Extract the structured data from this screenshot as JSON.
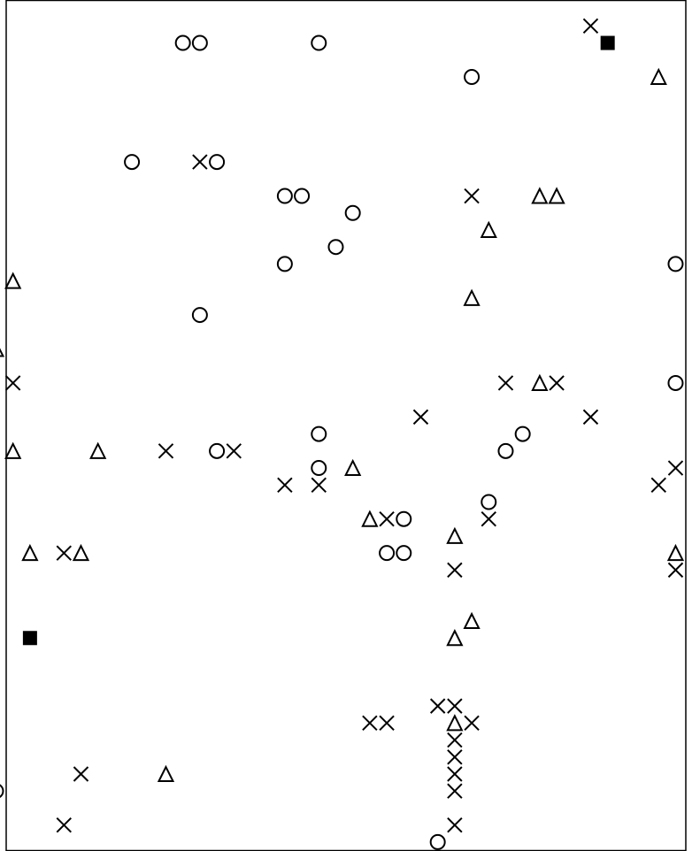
{
  "chart_data": {
    "type": "scatter",
    "title": "",
    "xlabel": "",
    "ylabel": "",
    "xlim": [
      0,
      40
    ],
    "ylim": [
      0,
      50
    ],
    "grid": false,
    "legend": "none",
    "color": "#000000",
    "series": [
      {
        "marker": "circle",
        "points": [
          [
            10.4,
            47.5
          ],
          [
            11.4,
            47.5
          ],
          [
            18.4,
            47.5
          ],
          [
            27.4,
            45.5
          ],
          [
            7.4,
            40.5
          ],
          [
            12.4,
            40.5
          ],
          [
            16.4,
            38.5
          ],
          [
            17.4,
            38.5
          ],
          [
            20.4,
            37.5
          ],
          [
            19.4,
            35.5
          ],
          [
            16.4,
            34.5
          ],
          [
            39.4,
            34.5
          ],
          [
            11.4,
            31.5
          ],
          [
            39.4,
            27.5
          ],
          [
            18.4,
            24.5
          ],
          [
            30.4,
            24.5
          ],
          [
            12.4,
            23.5
          ],
          [
            29.4,
            23.5
          ],
          [
            18.4,
            22.5
          ],
          [
            28.4,
            20.5
          ],
          [
            23.4,
            19.5
          ],
          [
            22.4,
            17.5
          ],
          [
            23.4,
            17.5
          ],
          [
            -0.6,
            3.5
          ],
          [
            25.4,
            0.5
          ]
        ]
      },
      {
        "marker": "cross",
        "points": [
          [
            34.4,
            48.5
          ],
          [
            11.4,
            40.5
          ],
          [
            27.4,
            38.5
          ],
          [
            0.4,
            27.5
          ],
          [
            29.4,
            27.5
          ],
          [
            32.4,
            27.5
          ],
          [
            24.4,
            25.5
          ],
          [
            34.4,
            25.5
          ],
          [
            9.4,
            23.5
          ],
          [
            13.4,
            23.5
          ],
          [
            39.4,
            22.5
          ],
          [
            16.4,
            21.5
          ],
          [
            18.4,
            21.5
          ],
          [
            38.4,
            21.5
          ],
          [
            22.4,
            19.5
          ],
          [
            28.4,
            19.5
          ],
          [
            3.4,
            17.5
          ],
          [
            26.4,
            16.5
          ],
          [
            39.4,
            16.5
          ],
          [
            25.4,
            8.5
          ],
          [
            26.4,
            8.5
          ],
          [
            21.4,
            7.5
          ],
          [
            22.4,
            7.5
          ],
          [
            27.4,
            7.5
          ],
          [
            26.4,
            6.5
          ],
          [
            26.4,
            5.5
          ],
          [
            26.4,
            4.5
          ],
          [
            4.4,
            4.5
          ],
          [
            26.4,
            3.5
          ],
          [
            3.4,
            1.5
          ],
          [
            26.4,
            1.5
          ]
        ]
      },
      {
        "marker": "triangle",
        "points": [
          [
            38.4,
            45.5
          ],
          [
            31.4,
            38.5
          ],
          [
            32.4,
            38.5
          ],
          [
            28.4,
            36.5
          ],
          [
            0.4,
            33.5
          ],
          [
            27.4,
            32.5
          ],
          [
            -0.6,
            29.5
          ],
          [
            31.4,
            27.5
          ],
          [
            0.4,
            23.5
          ],
          [
            5.4,
            23.5
          ],
          [
            20.4,
            22.5
          ],
          [
            21.4,
            19.5
          ],
          [
            26.4,
            18.5
          ],
          [
            1.4,
            17.5
          ],
          [
            4.4,
            17.5
          ],
          [
            39.4,
            17.5
          ],
          [
            27.4,
            13.5
          ],
          [
            26.4,
            12.5
          ],
          [
            26.4,
            7.5
          ],
          [
            9.4,
            4.5
          ]
        ]
      },
      {
        "marker": "square",
        "points": [
          [
            35.4,
            47.5
          ],
          [
            1.4,
            12.5
          ]
        ]
      }
    ]
  }
}
